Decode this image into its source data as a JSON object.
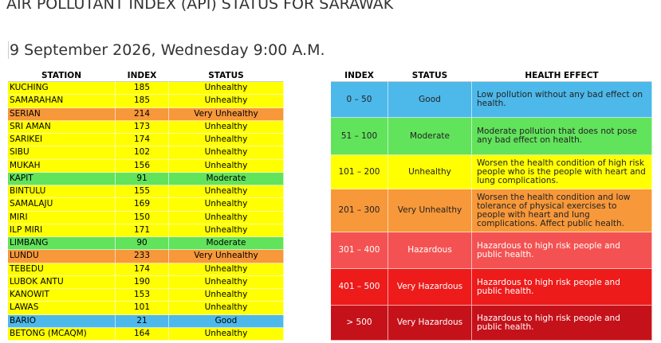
{
  "header": {
    "title": "AIR POLLUTANT INDEX (API) STATUS FOR SARAWAK",
    "date": "9 September 2026, Wednesday 9:00 A.M."
  },
  "station_table": {
    "columns": [
      "STATION",
      "INDEX",
      "STATUS"
    ],
    "rows": [
      [
        "KUCHING",
        "185",
        "Unhealthy"
      ],
      [
        "SAMARAHAN",
        "185",
        "Unhealthy"
      ],
      [
        "SERIAN",
        "214",
        "Very Unhealthy"
      ],
      [
        "SRI AMAN",
        "173",
        "Unhealthy"
      ],
      [
        "SARIKEI",
        "174",
        "Unhealthy"
      ],
      [
        "SIBU",
        "102",
        "Unhealthy"
      ],
      [
        "MUKAH",
        "156",
        "Unhealthy"
      ],
      [
        "KAPIT",
        "91",
        "Moderate"
      ],
      [
        "BINTULU",
        "155",
        "Unhealthy"
      ],
      [
        "SAMALAJU",
        "169",
        "Unhealthy"
      ],
      [
        "MIRI",
        "150",
        "Unhealthy"
      ],
      [
        "ILP MIRI",
        "171",
        "Unhealthy"
      ],
      [
        "LIMBANG",
        "90",
        "Moderate"
      ],
      [
        "LUNDU",
        "233",
        "Very Unhealthy"
      ],
      [
        "TEBEDU",
        "174",
        "Unhealthy"
      ],
      [
        "LUBOK ANTU",
        "190",
        "Unhealthy"
      ],
      [
        "KANOWIT",
        "153",
        "Unhealthy"
      ],
      [
        "LAWAS",
        "101",
        "Unhealthy"
      ],
      [
        "BARIO",
        "21",
        "Good"
      ],
      [
        "BETONG (MCAQM)",
        "164",
        "Unhealthy"
      ]
    ]
  },
  "legend_table": {
    "columns": [
      "INDEX",
      "STATUS",
      "HEALTH EFFECT"
    ],
    "rows": [
      {
        "cells": [
          "0 – 50",
          "Good",
          "Low pollution without any bad effect on health."
        ],
        "color": "#4db8ea"
      },
      {
        "cells": [
          "51 – 100",
          "Moderate",
          "Moderate pollution that does not pose any bad effect on health."
        ],
        "color": "#62e35c"
      },
      {
        "cells": [
          "101 – 200",
          "Unhealthy",
          "Worsen the health condition of high risk people who is the people with heart and lung complications."
        ],
        "color": "#ffff00"
      },
      {
        "cells": [
          "201 – 300",
          "Very Unhealthy",
          "Worsen the health condition and low tolerance of physical exercises to people with heart and lung complications. Affect public health."
        ],
        "color": "#f7983a"
      },
      {
        "cells": [
          "301 – 400",
          "Hazardous",
          "Hazardous to high risk people and public health."
        ],
        "color": "#f45252"
      },
      {
        "cells": [
          "401 – 500",
          "Very Hazardous",
          "Hazardous to high risk people and public health."
        ],
        "color": "#ee1b1b"
      },
      {
        "cells": [
          "> 500",
          "Very Hazardous",
          "Hazardous to high risk people and public health."
        ],
        "color": "#c5121a"
      }
    ]
  }
}
